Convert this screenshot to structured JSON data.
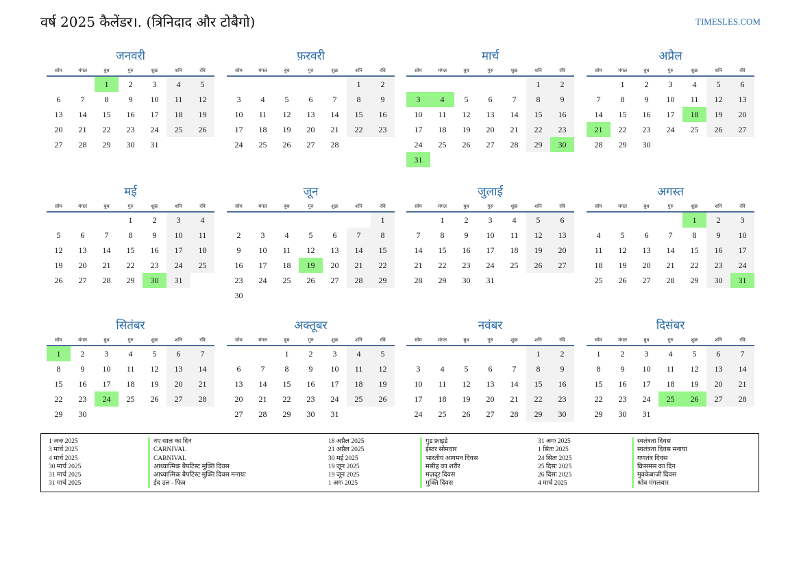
{
  "header": {
    "title": "वर्ष 2025 कैलेंडर।. (त्रिनिदाद और टोबैगो)",
    "site": "TIMESLES.COM"
  },
  "weekdays": [
    "सोम",
    "मंगल",
    "बुध",
    "गुरु",
    "शुक्र",
    "शनि",
    "रवि"
  ],
  "months": [
    {
      "name": "जनवरी",
      "offset": 2,
      "days": 31,
      "holidays": [
        1
      ]
    },
    {
      "name": "फ़रवरी",
      "offset": 5,
      "days": 28,
      "holidays": []
    },
    {
      "name": "मार्च",
      "offset": 5,
      "days": 31,
      "holidays": [
        3,
        4,
        30,
        31
      ]
    },
    {
      "name": "अप्रैल",
      "offset": 1,
      "days": 30,
      "holidays": [
        18,
        21
      ]
    },
    {
      "name": "मई",
      "offset": 3,
      "days": 31,
      "holidays": [
        30
      ]
    },
    {
      "name": "जून",
      "offset": 6,
      "days": 30,
      "holidays": [
        19
      ]
    },
    {
      "name": "जुलाई",
      "offset": 1,
      "days": 31,
      "holidays": []
    },
    {
      "name": "अगस्त",
      "offset": 4,
      "days": 31,
      "holidays": [
        1,
        31
      ]
    },
    {
      "name": "सितंबर",
      "offset": 0,
      "days": 30,
      "holidays": [
        1,
        24
      ]
    },
    {
      "name": "अक्तूबर",
      "offset": 2,
      "days": 31,
      "holidays": []
    },
    {
      "name": "नवंबर",
      "offset": 5,
      "days": 30,
      "holidays": []
    },
    {
      "name": "दिसंबर",
      "offset": 0,
      "days": 31,
      "holidays": [
        25,
        26
      ]
    }
  ],
  "holiday_list": [
    [
      {
        "date": "1 जनः 2025",
        "name": "नए साल का दिन"
      },
      {
        "date": "3 मार्च 2025",
        "name": "CARNIVAL"
      },
      {
        "date": "4 मार्च 2025",
        "name": "CARNIVAL"
      },
      {
        "date": "30 मार्च 2025",
        "name": "आध्यात्मिक बैपटिस्ट मुक्ति दिवस"
      },
      {
        "date": "31 मार्च 2025",
        "name": "आध्यात्मिक बैपटिस्ट मुक्ति दिवस मनाया"
      },
      {
        "date": "31 मार्च 2025",
        "name": "ईद उल - फित्र"
      }
    ],
    [
      {
        "date": "18 अप्रैल 2025",
        "name": "गुड फ्राइडे"
      },
      {
        "date": "21 अप्रैल 2025",
        "name": "ईस्टर सोमवार"
      },
      {
        "date": "30 मई 2025",
        "name": "भारतीय आगमन दिवस"
      },
      {
        "date": "19 जून 2025",
        "name": "मसीह का शरीर"
      },
      {
        "date": "19 जून 2025",
        "name": "मज़दूर दिवस"
      },
      {
        "date": "1 अगः 2025",
        "name": "मुक्ति दिवस"
      }
    ],
    [
      {
        "date": "31 अगः 2025",
        "name": "स्वतंत्रता दिवस"
      },
      {
        "date": "1 सितः 2025",
        "name": "स्वतंत्रता दिवस मनाया"
      },
      {
        "date": "24 सितः 2025",
        "name": "गणतंत्र दिवस"
      },
      {
        "date": "25 दिसः 2025",
        "name": "क्रिसमस का दिन"
      },
      {
        "date": "26 दिसः 2025",
        "name": "मुक्केबाजी दिवस"
      },
      {
        "date": "4 मार्च 2025",
        "name": "श्रोव मंगलवार"
      }
    ]
  ]
}
